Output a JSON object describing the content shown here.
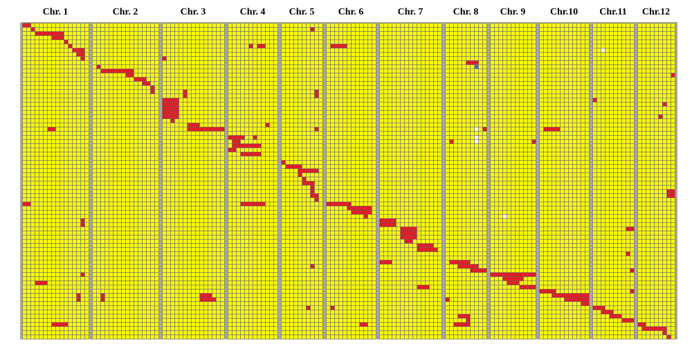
{
  "chart_data": {
    "type": "genotype-map",
    "rows": 76,
    "chromosomes": [
      {
        "label": "Chr. 1",
        "columns": 16,
        "red": [
          [
            0,
            0,
            1
          ],
          [
            1,
            2,
            2
          ],
          [
            2,
            3,
            9
          ],
          [
            3,
            7,
            9
          ],
          [
            4,
            10,
            10
          ],
          [
            5,
            11,
            11
          ],
          [
            6,
            12,
            14
          ],
          [
            7,
            13,
            14
          ],
          [
            8,
            14,
            14
          ],
          [
            25,
            6,
            7
          ],
          [
            43,
            0,
            1
          ],
          [
            47,
            14,
            14
          ],
          [
            48,
            14,
            14
          ],
          [
            60,
            14,
            14
          ],
          [
            62,
            3,
            5
          ],
          [
            65,
            13,
            13
          ],
          [
            66,
            13,
            13
          ],
          [
            72,
            7,
            10
          ]
        ],
        "blue": [],
        "white": []
      },
      {
        "label": "Chr. 2",
        "columns": 16,
        "red": [
          [
            10,
            1,
            1
          ],
          [
            11,
            2,
            9
          ],
          [
            12,
            8,
            9
          ],
          [
            13,
            10,
            12
          ],
          [
            14,
            12,
            13
          ],
          [
            15,
            14,
            14
          ],
          [
            16,
            14,
            14
          ],
          [
            65,
            2,
            2
          ],
          [
            66,
            2,
            2
          ]
        ],
        "blue": [],
        "white": []
      },
      {
        "label": "Chr. 3",
        "columns": 15,
        "red": [
          [
            8,
            0,
            0
          ],
          [
            16,
            5,
            5
          ],
          [
            17,
            5,
            5
          ],
          [
            18,
            0,
            3
          ],
          [
            19,
            0,
            3
          ],
          [
            20,
            0,
            3
          ],
          [
            21,
            0,
            3
          ],
          [
            22,
            0,
            3
          ],
          [
            23,
            2,
            2
          ],
          [
            24,
            6,
            8
          ],
          [
            25,
            6,
            14
          ],
          [
            65,
            9,
            11
          ],
          [
            66,
            9,
            12
          ]
        ],
        "blue": [],
        "white": []
      },
      {
        "label": "Chr. 4",
        "columns": 12,
        "red": [
          [
            5,
            5,
            5
          ],
          [
            5,
            7,
            8
          ],
          [
            24,
            9,
            9
          ],
          [
            27,
            0,
            3
          ],
          [
            27,
            6,
            6
          ],
          [
            28,
            1,
            2
          ],
          [
            29,
            1,
            7
          ],
          [
            30,
            0,
            1
          ],
          [
            31,
            3,
            7
          ],
          [
            43,
            3,
            8
          ]
        ],
        "blue": [],
        "white": []
      },
      {
        "label": "Chr. 5",
        "columns": 10,
        "red": [
          [
            1,
            7,
            7
          ],
          [
            16,
            8,
            8
          ],
          [
            17,
            8,
            8
          ],
          [
            25,
            8,
            8
          ],
          [
            33,
            0,
            0
          ],
          [
            34,
            1,
            4
          ],
          [
            35,
            4,
            8
          ],
          [
            36,
            4,
            4
          ],
          [
            37,
            5,
            5
          ],
          [
            38,
            5,
            7
          ],
          [
            39,
            7,
            7
          ],
          [
            40,
            7,
            7
          ],
          [
            41,
            7,
            8
          ],
          [
            42,
            8,
            8
          ],
          [
            58,
            7,
            7
          ],
          [
            68,
            6,
            6
          ]
        ],
        "blue": [],
        "white": []
      },
      {
        "label": "Chr. 6",
        "columns": 12,
        "red": [
          [
            5,
            1,
            4
          ],
          [
            43,
            0,
            5
          ],
          [
            44,
            5,
            10
          ],
          [
            45,
            6,
            10
          ],
          [
            46,
            9,
            9
          ],
          [
            68,
            1,
            1
          ],
          [
            72,
            8,
            9
          ]
        ],
        "blue": [],
        "white": []
      },
      {
        "label": "Chr. 7",
        "columns": 15,
        "red": [
          [
            47,
            0,
            3
          ],
          [
            48,
            0,
            3
          ],
          [
            49,
            5,
            8
          ],
          [
            50,
            5,
            8
          ],
          [
            51,
            5,
            8
          ],
          [
            52,
            6,
            7
          ],
          [
            53,
            9,
            12
          ],
          [
            54,
            9,
            13
          ],
          [
            57,
            0,
            2
          ],
          [
            63,
            9,
            11
          ]
        ],
        "blue": [],
        "white": []
      },
      {
        "label": "Chr. 8",
        "columns": 10,
        "red": [
          [
            9,
            5,
            7
          ],
          [
            25,
            9,
            9
          ],
          [
            28,
            1,
            1
          ],
          [
            57,
            1,
            5
          ],
          [
            58,
            3,
            7
          ],
          [
            59,
            6,
            9
          ],
          [
            66,
            0,
            0
          ],
          [
            70,
            3,
            5
          ],
          [
            71,
            5,
            5
          ],
          [
            72,
            2,
            5
          ]
        ],
        "blue": [
          [
            10,
            7
          ]
        ],
        "white": [
          [
            25,
            7
          ],
          [
            27,
            7
          ],
          [
            28,
            7
          ]
        ]
      },
      {
        "label": "Chr. 9",
        "columns": 11,
        "red": [
          [
            28,
            10,
            10
          ],
          [
            60,
            0,
            10
          ],
          [
            61,
            3,
            7
          ],
          [
            62,
            4,
            6
          ],
          [
            63,
            7,
            10
          ]
        ],
        "blue": [],
        "white": [
          [
            46,
            3
          ]
        ]
      },
      {
        "label": "Chr.10",
        "columns": 12,
        "red": [
          [
            25,
            1,
            4
          ],
          [
            64,
            0,
            3
          ],
          [
            65,
            3,
            11
          ],
          [
            66,
            6,
            11
          ],
          [
            67,
            10,
            11
          ]
        ],
        "blue": [],
        "white": []
      },
      {
        "label": "Chr.11",
        "columns": 10,
        "red": [
          [
            18,
            0,
            0
          ],
          [
            49,
            8,
            9
          ],
          [
            55,
            8,
            8
          ],
          [
            59,
            9,
            9
          ],
          [
            64,
            9,
            9
          ],
          [
            68,
            0,
            2
          ],
          [
            69,
            2,
            4
          ],
          [
            70,
            4,
            6
          ],
          [
            71,
            7,
            9
          ]
        ],
        "blue": [],
        "white": [
          [
            6,
            2
          ]
        ]
      },
      {
        "label": "Chr.12",
        "columns": 9,
        "red": [
          [
            12,
            8,
            8
          ],
          [
            19,
            6,
            6
          ],
          [
            22,
            5,
            5
          ],
          [
            40,
            7,
            8
          ],
          [
            41,
            7,
            8
          ],
          [
            72,
            0,
            1
          ],
          [
            73,
            1,
            6
          ],
          [
            74,
            6,
            6
          ],
          [
            75,
            7,
            7
          ]
        ],
        "blue": [],
        "white": []
      }
    ]
  }
}
